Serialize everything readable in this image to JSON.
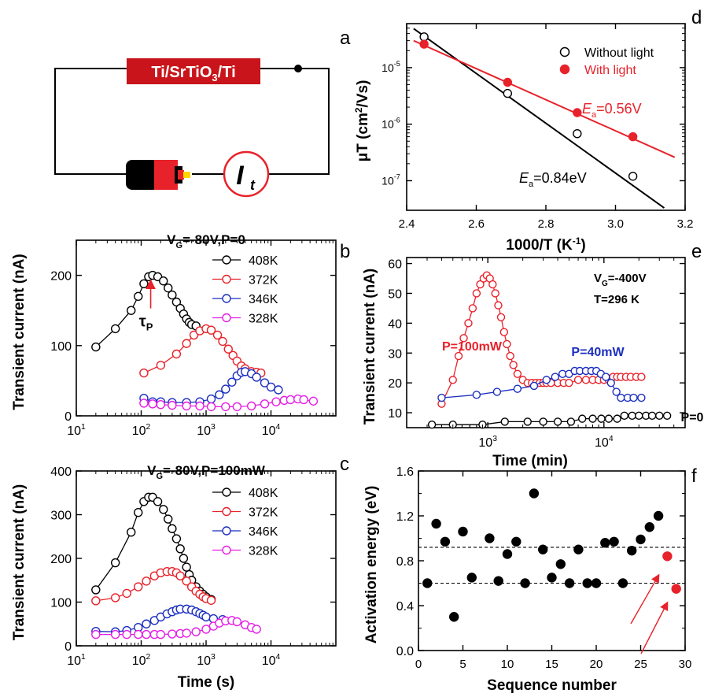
{
  "colors": {
    "black": "#000000",
    "red": "#e8222a",
    "blue": "#1c2fc0",
    "magenta": "#e51ee5",
    "box_red": "#c8141a"
  },
  "panel_letters": {
    "a": "a",
    "b": "b",
    "c": "c",
    "d": "d",
    "e": "e",
    "f": "f"
  },
  "circuit": {
    "device_label": "Ti/SrTiO3/Ti",
    "meter_label": "I",
    "meter_sub": "t",
    "battery_icon": "battery-icon"
  },
  "chart_data": [
    {
      "id": "b",
      "type": "scatter",
      "title": "VG=-80V,P=0",
      "title_parts": {
        "v": "V",
        "sub": "G",
        "rest": "=-80V,P=0"
      },
      "xlabel": "",
      "ylabel": "Transient current (nA)",
      "xscale": "log",
      "xlim": [
        10,
        100000
      ],
      "ylim": [
        0,
        250
      ],
      "xticks": [
        {
          "base": "10",
          "exp": "1",
          "v": 10
        },
        {
          "base": "10",
          "exp": "2",
          "v": 100
        },
        {
          "base": "10",
          "exp": "3",
          "v": 1000
        },
        {
          "base": "10",
          "exp": "4",
          "v": 10000
        }
      ],
      "yticks": [
        {
          "label": "0",
          "v": 0
        },
        {
          "label": "100",
          "v": 100
        },
        {
          "label": "200",
          "v": 200
        }
      ],
      "legend": "top-right",
      "annotation": {
        "text": "τ",
        "sub": "P"
      },
      "series": [
        {
          "name": "408K",
          "color": "black",
          "marker": "open",
          "x": [
            20,
            40,
            70,
            90,
            110,
            130,
            150,
            180,
            220,
            260,
            300,
            350,
            400,
            450,
            500,
            550,
            600,
            700
          ],
          "y": [
            98,
            124,
            150,
            170,
            188,
            198,
            200,
            198,
            192,
            182,
            172,
            162,
            153,
            145,
            138,
            133,
            130,
            128
          ]
        },
        {
          "name": "372K",
          "color": "red",
          "marker": "open",
          "x": [
            110,
            200,
            350,
            500,
            650,
            800,
            1000,
            1200,
            1500,
            1800,
            2200,
            2600,
            3000,
            3500,
            4000,
            5000,
            6000,
            7000
          ],
          "y": [
            61,
            72,
            88,
            103,
            115,
            121,
            124,
            122,
            115,
            106,
            95,
            86,
            78,
            71,
            67,
            63,
            62,
            61
          ]
        },
        {
          "name": "346K",
          "color": "blue",
          "marker": "open",
          "x": [
            110,
            150,
            200,
            300,
            500,
            800,
            1200,
            1600,
            2000,
            2500,
            3000,
            3500,
            4000,
            5000,
            6000,
            8000,
            10000,
            13000
          ],
          "y": [
            25,
            20,
            20,
            19,
            19,
            20,
            24,
            30,
            38,
            48,
            57,
            62,
            63,
            60,
            55,
            47,
            41,
            37
          ]
        },
        {
          "name": "328K",
          "color": "magenta",
          "marker": "open",
          "x": [
            110,
            150,
            200,
            300,
            500,
            800,
            1200,
            2000,
            3000,
            5000,
            8000,
            12000,
            16000,
            20000,
            26000,
            32000,
            45000
          ],
          "y": [
            18,
            17,
            16,
            15,
            14,
            14,
            13,
            13,
            13,
            14,
            17,
            20,
            22,
            23,
            24,
            23,
            21
          ]
        }
      ]
    },
    {
      "id": "c",
      "type": "scatter",
      "title": "VG=-80V,P=100mW",
      "title_parts": {
        "v": "V",
        "sub": "G",
        "rest": "=-80V,P=100mW"
      },
      "xlabel": "Time (s)",
      "ylabel": "Transient current (nA)",
      "xscale": "log",
      "xlim": [
        10,
        100000
      ],
      "ylim": [
        0,
        400
      ],
      "xticks": [
        {
          "base": "10",
          "exp": "1",
          "v": 10
        },
        {
          "base": "10",
          "exp": "2",
          "v": 100
        },
        {
          "base": "10",
          "exp": "3",
          "v": 1000
        },
        {
          "base": "10",
          "exp": "4",
          "v": 10000
        }
      ],
      "yticks": [
        {
          "label": "0",
          "v": 0
        },
        {
          "label": "100",
          "v": 100
        },
        {
          "label": "200",
          "v": 200
        },
        {
          "label": "300",
          "v": 300
        },
        {
          "label": "400",
          "v": 400
        }
      ],
      "legend": "top-right",
      "series": [
        {
          "name": "408K",
          "color": "black",
          "marker": "open",
          "x": [
            20,
            40,
            70,
            90,
            110,
            130,
            150,
            180,
            220,
            260,
            300,
            350,
            400,
            450,
            500,
            550,
            600,
            700,
            800,
            900,
            1000,
            1200
          ],
          "y": [
            128,
            190,
            260,
            305,
            330,
            340,
            340,
            330,
            312,
            290,
            268,
            245,
            222,
            200,
            180,
            163,
            150,
            135,
            125,
            118,
            112,
            106
          ]
        },
        {
          "name": "372K",
          "color": "red",
          "marker": "open",
          "x": [
            20,
            40,
            60,
            90,
            120,
            160,
            200,
            250,
            300,
            350,
            400,
            500,
            600,
            700,
            800,
            900,
            1000,
            1200
          ],
          "y": [
            103,
            110,
            120,
            135,
            148,
            160,
            167,
            170,
            170,
            167,
            160,
            148,
            135,
            125,
            118,
            112,
            108,
            104
          ]
        },
        {
          "name": "346K",
          "color": "blue",
          "marker": "open",
          "x": [
            20,
            40,
            60,
            90,
            120,
            160,
            200,
            250,
            300,
            350,
            400,
            500,
            600,
            700,
            800,
            900,
            1000,
            1300,
            1800
          ],
          "y": [
            33,
            32,
            35,
            42,
            50,
            58,
            66,
            73,
            78,
            82,
            84,
            84,
            82,
            78,
            74,
            70,
            66,
            62,
            60
          ]
        },
        {
          "name": "328K",
          "color": "magenta",
          "marker": "open",
          "x": [
            20,
            40,
            60,
            90,
            120,
            160,
            200,
            300,
            400,
            500,
            700,
            1000,
            1300,
            1600,
            2000,
            2500,
            3000,
            4000,
            5000,
            6000
          ],
          "y": [
            26,
            26,
            26,
            26,
            26,
            26,
            26,
            27,
            28,
            29,
            32,
            38,
            45,
            52,
            57,
            58,
            55,
            48,
            42,
            38
          ]
        }
      ]
    },
    {
      "id": "d",
      "type": "scatter",
      "title": "",
      "xlabel": "1000/T (K",
      "xlabel_sup": "-1",
      "xlabel_tail": ")",
      "ylabel": "μT (cm",
      "ylabel_sup": "2",
      "ylabel_tail": "/Vs)",
      "xscale": "linear",
      "yscale": "log",
      "xlim": [
        2.4,
        3.2
      ],
      "ylim": [
        3e-08,
        6e-05
      ],
      "xticks": [
        {
          "label": "2.4",
          "v": 2.4
        },
        {
          "label": "2.6",
          "v": 2.6
        },
        {
          "label": "2.8",
          "v": 2.8
        },
        {
          "label": "3.0",
          "v": 3.0
        },
        {
          "label": "3.2",
          "v": 3.2
        }
      ],
      "yticks": [
        {
          "base": "10",
          "exp": "-7",
          "v": 1e-07
        },
        {
          "base": "10",
          "exp": "-6",
          "v": 1e-06
        },
        {
          "base": "10",
          "exp": "-5",
          "v": 1e-05
        }
      ],
      "legend": "top-right",
      "annotations": [
        {
          "e": "E",
          "sub": "a",
          "rest": "=0.56V",
          "color": "red"
        },
        {
          "e": "E",
          "sub": "a",
          "rest": "=0.84eV",
          "color": "black"
        }
      ],
      "series": [
        {
          "name": "Without light",
          "color": "black",
          "marker": "open",
          "x": [
            2.45,
            2.69,
            2.89,
            3.05
          ],
          "y": [
            3.5e-05,
            3.5e-06,
            6.8e-07,
            1.2e-07
          ],
          "fit": {
            "x": [
              2.42,
              3.14
            ],
            "y": [
              4.9e-05,
              3.3e-08
            ]
          }
        },
        {
          "name": "With light",
          "color": "red",
          "marker": "filled",
          "x": [
            2.45,
            2.69,
            2.89,
            3.05
          ],
          "y": [
            2.6e-05,
            5.5e-06,
            1.6e-06,
            6e-07
          ],
          "fit": {
            "x": [
              2.42,
              3.17
            ],
            "y": [
              3e-05,
              2.6e-07
            ]
          }
        }
      ]
    },
    {
      "id": "e",
      "type": "scatter",
      "title": "",
      "xlabel": "Time (min)",
      "ylabel": "Transient current (nA)",
      "xscale": "log",
      "xlim": [
        200,
        50000
      ],
      "ylim": [
        5,
        62
      ],
      "xticks": [
        {
          "base": "10",
          "exp": "3",
          "v": 1000
        },
        {
          "base": "10",
          "exp": "4",
          "v": 10000
        }
      ],
      "yticks": [
        {
          "label": "10",
          "v": 10
        },
        {
          "label": "20",
          "v": 20
        },
        {
          "label": "30",
          "v": 30
        },
        {
          "label": "40",
          "v": 40
        },
        {
          "label": "50",
          "v": 50
        },
        {
          "label": "60",
          "v": 60
        }
      ],
      "conditions": {
        "v": "V",
        "sub": "G",
        "rest": "=-400V",
        "temp": "T=296 K"
      },
      "series": [
        {
          "name": "P=100mW",
          "color": "red",
          "marker": "open",
          "x": [
            400,
            500,
            560,
            620,
            680,
            740,
            800,
            860,
            920,
            980,
            1040,
            1100,
            1160,
            1230,
            1300,
            1380,
            1460,
            1560,
            1660,
            1800,
            2000,
            2200,
            2400,
            2600,
            2800,
            3000,
            3200,
            3500,
            4000,
            4500,
            5000,
            6000,
            7000,
            8000,
            9000,
            10000,
            11000,
            12000,
            13000,
            14000,
            15500,
            17000,
            19000,
            21000
          ],
          "y": [
            13,
            21,
            29,
            35,
            40,
            45,
            50,
            53,
            55,
            56,
            55,
            53,
            50,
            46,
            42,
            37,
            33,
            29,
            26,
            23,
            21,
            20,
            20,
            20,
            20,
            20,
            20,
            20,
            20,
            20,
            20,
            21,
            21,
            21,
            21,
            21,
            21,
            22,
            22,
            22,
            22,
            22,
            22,
            22
          ]
        },
        {
          "name": "P=40mW",
          "color": "blue",
          "marker": "open",
          "x": [
            400,
            800,
            1200,
            1800,
            2500,
            3200,
            3800,
            4400,
            5000,
            5600,
            6200,
            7000,
            7800,
            8600,
            9400,
            10400,
            11500,
            12800,
            14000,
            16000,
            18000,
            21000
          ],
          "y": [
            15,
            16,
            17,
            18,
            19,
            21,
            22,
            23,
            23,
            24,
            24,
            24,
            24,
            24,
            23,
            22,
            20,
            17,
            15,
            15,
            15,
            15
          ]
        },
        {
          "name": "P=0",
          "color": "black",
          "marker": "open",
          "x": [
            330,
            500,
            900,
            1400,
            2200,
            3000,
            4000,
            5200,
            6500,
            8000,
            9500,
            11000,
            13000,
            15000,
            17500,
            20000,
            23000,
            26000,
            30000,
            35000
          ],
          "y": [
            6,
            6,
            6,
            7,
            7,
            7,
            7,
            7,
            8,
            8,
            8,
            8,
            8,
            9,
            9,
            9,
            9,
            9,
            9,
            9
          ]
        }
      ]
    },
    {
      "id": "f",
      "type": "scatter",
      "title": "",
      "xlabel": "Sequence number",
      "ylabel": "Activation energy (eV)",
      "xscale": "linear",
      "xlim": [
        0,
        30
      ],
      "ylim": [
        0,
        1.6
      ],
      "xticks": [
        {
          "label": "0",
          "v": 0
        },
        {
          "label": "5",
          "v": 5
        },
        {
          "label": "10",
          "v": 10
        },
        {
          "label": "15",
          "v": 15
        },
        {
          "label": "20",
          "v": 20
        },
        {
          "label": "25",
          "v": 25
        },
        {
          "label": "30",
          "v": 30
        }
      ],
      "yticks": [
        {
          "label": "0.0",
          "v": 0
        },
        {
          "label": "0.4",
          "v": 0.4
        },
        {
          "label": "0.8",
          "v": 0.8
        },
        {
          "label": "1.2",
          "v": 1.2
        },
        {
          "label": "1.6",
          "v": 1.6
        }
      ],
      "hlines": [
        0.92,
        0.6
      ],
      "series": [
        {
          "name": "",
          "color": "black",
          "marker": "filled",
          "x": [
            1,
            2,
            3,
            4,
            5,
            6,
            8,
            9,
            10,
            11,
            12,
            13,
            14,
            15,
            16,
            17,
            18,
            19,
            20,
            21,
            22,
            23,
            24,
            25,
            26,
            27
          ],
          "y": [
            0.6,
            1.13,
            0.97,
            0.3,
            1.06,
            0.65,
            1.0,
            0.62,
            0.86,
            0.97,
            0.6,
            1.4,
            0.9,
            0.65,
            0.77,
            0.6,
            0.9,
            0.6,
            0.6,
            0.96,
            0.97,
            0.6,
            0.89,
            0.99,
            1.1,
            1.2
          ]
        },
        {
          "name": "",
          "color": "red",
          "marker": "filled",
          "x": [
            28,
            29
          ],
          "y": [
            0.84,
            0.55
          ]
        }
      ]
    }
  ]
}
